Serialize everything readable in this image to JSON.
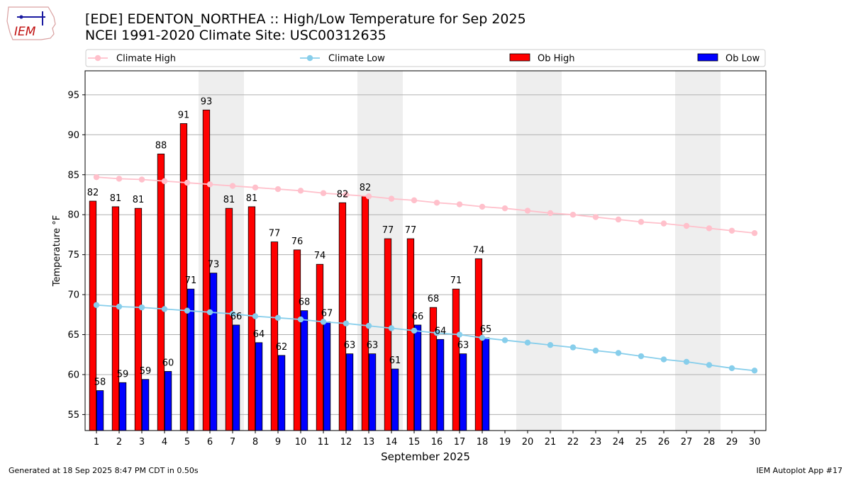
{
  "header": {
    "title_line1": "[EDE] EDENTON_NORTHEA :: High/Low Temperature for Sep 2025",
    "title_line2": "NCEI 1991-2020 Climate Site: USC00312635",
    "logo_text": "IEM"
  },
  "footer": {
    "left": "Generated at 18 Sep 2025 8:47 PM CDT in 0.50s",
    "right": "IEM Autoplot App #17"
  },
  "colors": {
    "climate_high": "#ffc0cb",
    "climate_low": "#87ceeb",
    "ob_high": "#ff0000",
    "ob_low": "#0000ff",
    "weekend_shade": "#eeeeee",
    "grid": "#b0b0b0"
  },
  "chart_data": {
    "type": "bar",
    "xlabel": "September 2025",
    "ylabel": "Temperature °F",
    "ylim": [
      53,
      98
    ],
    "yticks": [
      55,
      60,
      65,
      70,
      75,
      80,
      85,
      90,
      95
    ],
    "grid": "horizontal",
    "legend_position": "top",
    "days": [
      1,
      2,
      3,
      4,
      5,
      6,
      7,
      8,
      9,
      10,
      11,
      12,
      13,
      14,
      15,
      16,
      17,
      18,
      19,
      20,
      21,
      22,
      23,
      24,
      25,
      26,
      27,
      28,
      29,
      30
    ],
    "shaded_days": [
      [
        6,
        7
      ],
      [
        13,
        14
      ],
      [
        20,
        21
      ],
      [
        27,
        28
      ]
    ],
    "series": [
      {
        "name": "Climate High",
        "kind": "line",
        "values": [
          84.7,
          84.5,
          84.4,
          84.2,
          84.0,
          83.8,
          83.6,
          83.4,
          83.2,
          83.0,
          82.7,
          82.5,
          82.3,
          82.0,
          81.8,
          81.5,
          81.3,
          81.0,
          80.8,
          80.5,
          80.2,
          80.0,
          79.7,
          79.4,
          79.1,
          78.9,
          78.6,
          78.3,
          78.0,
          77.7
        ]
      },
      {
        "name": "Climate Low",
        "kind": "line",
        "values": [
          68.7,
          68.5,
          68.4,
          68.2,
          68.0,
          67.8,
          67.6,
          67.3,
          67.1,
          66.9,
          66.6,
          66.4,
          66.1,
          65.8,
          65.5,
          65.2,
          65.0,
          64.6,
          64.3,
          64.0,
          63.7,
          63.4,
          63.0,
          62.7,
          62.3,
          61.9,
          61.6,
          61.2,
          60.8,
          60.5
        ]
      },
      {
        "name": "Ob High",
        "kind": "bar",
        "values": [
          81.7,
          81,
          80.8,
          87.6,
          91.4,
          93.1,
          80.8,
          81,
          76.6,
          75.6,
          73.8,
          81.5,
          82.3,
          77,
          77,
          68.4,
          70.7,
          74.5
        ],
        "labels": [
          "82",
          "81",
          "81",
          "88",
          "91",
          "93",
          "81",
          "81",
          "77",
          "76",
          "74",
          "82",
          "82",
          "77",
          "77",
          "68",
          "71",
          "74"
        ]
      },
      {
        "name": "Ob Low",
        "kind": "bar",
        "values": [
          58,
          59,
          59.4,
          60.4,
          70.7,
          72.7,
          66.2,
          64,
          62.4,
          68,
          66.6,
          62.6,
          62.6,
          60.7,
          66.2,
          64.4,
          62.6,
          64.6
        ],
        "labels": [
          "58",
          "59",
          "59",
          "60",
          "71",
          "73",
          "66",
          "64",
          "62",
          "68",
          "67",
          "63",
          "63",
          "61",
          "66",
          "64",
          "63",
          "65"
        ]
      }
    ]
  }
}
